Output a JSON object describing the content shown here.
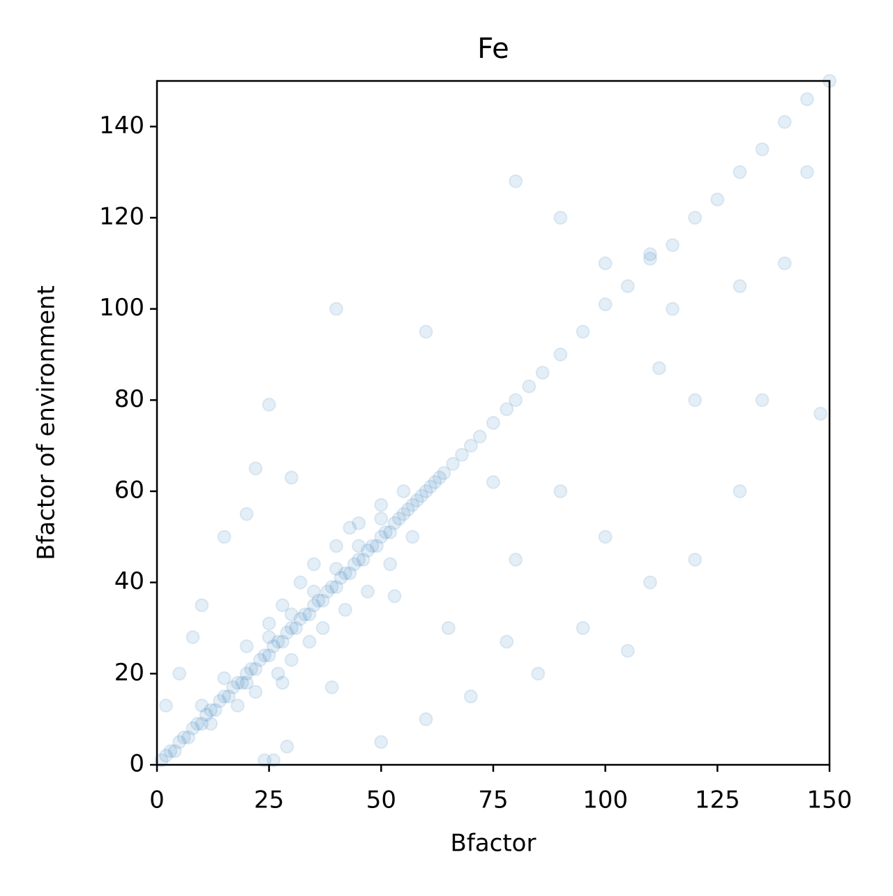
{
  "chart_data": {
    "type": "scatter",
    "title": "Fe",
    "x_label": "Bfactor",
    "y_label": "Bfactor of environment",
    "x": [
      1,
      2,
      3,
      4,
      5,
      6,
      7,
      8,
      9,
      10,
      11,
      12,
      13,
      14,
      15,
      16,
      17,
      18,
      19,
      20,
      21,
      22,
      23,
      24,
      25,
      26,
      27,
      28,
      29,
      30,
      31,
      32,
      33,
      34,
      35,
      36,
      37,
      38,
      39,
      40,
      41,
      42,
      43,
      44,
      45,
      46,
      47,
      48,
      49,
      50,
      51,
      52,
      53,
      54,
      55,
      56,
      57,
      58,
      59,
      60,
      61,
      62,
      63,
      64,
      10,
      12,
      15,
      18,
      20,
      22,
      25,
      27,
      28,
      30,
      32,
      34,
      35,
      37,
      40,
      42,
      45,
      47,
      50,
      52,
      55,
      57,
      20,
      25,
      30,
      35,
      40,
      45,
      50,
      66,
      68,
      70,
      72,
      75,
      78,
      80,
      83,
      86,
      90,
      95,
      100,
      105,
      110,
      115,
      120,
      125,
      130,
      135,
      140,
      145,
      150,
      25,
      75,
      78,
      43,
      53,
      24,
      26,
      29,
      39,
      28,
      40,
      60,
      80,
      90,
      100,
      110,
      120,
      130,
      140,
      145,
      112,
      115,
      130,
      95,
      85,
      70,
      65,
      60,
      50,
      100,
      90,
      80,
      120,
      135,
      148,
      105,
      110,
      5,
      10,
      15,
      22,
      30,
      20,
      8,
      2
    ],
    "y": [
      1,
      2,
      3,
      3,
      5,
      6,
      6,
      8,
      9,
      9,
      11,
      12,
      12,
      14,
      15,
      15,
      17,
      18,
      18,
      20,
      21,
      21,
      23,
      24,
      24,
      26,
      27,
      27,
      29,
      30,
      30,
      32,
      33,
      33,
      35,
      36,
      36,
      38,
      39,
      39,
      41,
      42,
      42,
      44,
      45,
      45,
      47,
      48,
      48,
      50,
      51,
      51,
      53,
      54,
      55,
      56,
      57,
      58,
      59,
      60,
      61,
      62,
      63,
      64,
      13,
      9,
      19,
      13,
      26,
      16,
      31,
      20,
      35,
      23,
      40,
      27,
      44,
      30,
      48,
      34,
      53,
      38,
      57,
      44,
      60,
      50,
      18,
      28,
      33,
      38,
      43,
      48,
      54,
      66,
      68,
      70,
      72,
      75,
      78,
      80,
      83,
      86,
      90,
      95,
      101,
      105,
      111,
      114,
      120,
      124,
      130,
      135,
      141,
      146,
      150,
      79,
      62,
      27,
      52,
      37,
      1,
      1,
      4,
      17,
      18,
      100,
      95,
      45,
      60,
      50,
      40,
      80,
      60,
      110,
      130,
      87,
      100,
      105,
      30,
      20,
      15,
      30,
      10,
      5,
      110,
      120,
      128,
      45,
      80,
      77,
      25,
      112,
      20,
      35,
      50,
      65,
      63,
      55,
      28,
      13
    ],
    "color": "#1f77b4",
    "alpha": 0.12,
    "xlim": [
      0,
      150
    ],
    "ylim": [
      0,
      150
    ],
    "xticks": [
      0,
      25,
      50,
      75,
      100,
      125,
      150
    ],
    "yticks": [
      0,
      20,
      40,
      60,
      80,
      100,
      120,
      140
    ]
  }
}
